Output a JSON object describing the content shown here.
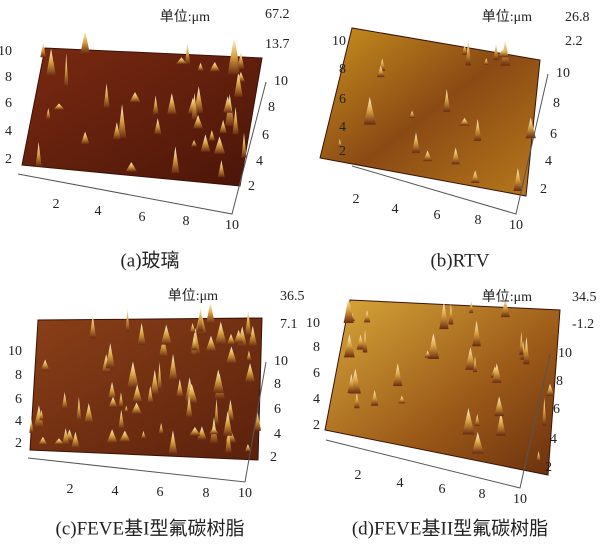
{
  "panels": [
    {
      "caption": "(a)玻璃",
      "unit": "单位:μm",
      "z_labels": [
        "67.2",
        "13.7"
      ],
      "left_ticks": [
        2,
        4,
        6,
        8,
        10
      ],
      "bottom_ticks": [
        2,
        4,
        6,
        8,
        10
      ],
      "right_ticks": [
        2,
        4,
        6,
        8,
        10
      ]
    },
    {
      "caption": "(b)RTV",
      "unit": "单位:μm",
      "z_labels": [
        "26.8",
        "2.2"
      ],
      "left_ticks": [
        2,
        4,
        6,
        8,
        10
      ],
      "bottom_ticks": [
        2,
        4,
        6,
        8,
        10
      ],
      "right_ticks": [
        2,
        4,
        6,
        8,
        10
      ]
    },
    {
      "caption": "(c)FEVE基I型氟碳树脂",
      "unit": "单位:μm",
      "z_labels": [
        "36.5",
        "7.1"
      ],
      "left_ticks": [
        2,
        4,
        6,
        8,
        10
      ],
      "bottom_ticks": [
        2,
        4,
        6,
        8,
        10
      ],
      "right_ticks": [
        2,
        4,
        6,
        8,
        10
      ]
    },
    {
      "caption": "(d)FEVE基II型氟碳树脂",
      "unit": "单位:μm",
      "z_labels": [
        "34.5",
        "-1.2"
      ],
      "left_ticks": [
        2,
        4,
        6,
        8,
        10
      ],
      "bottom_ticks": [
        2,
        4,
        6,
        8,
        10
      ],
      "right_ticks": [
        2,
        4,
        6,
        8,
        10
      ]
    }
  ]
}
